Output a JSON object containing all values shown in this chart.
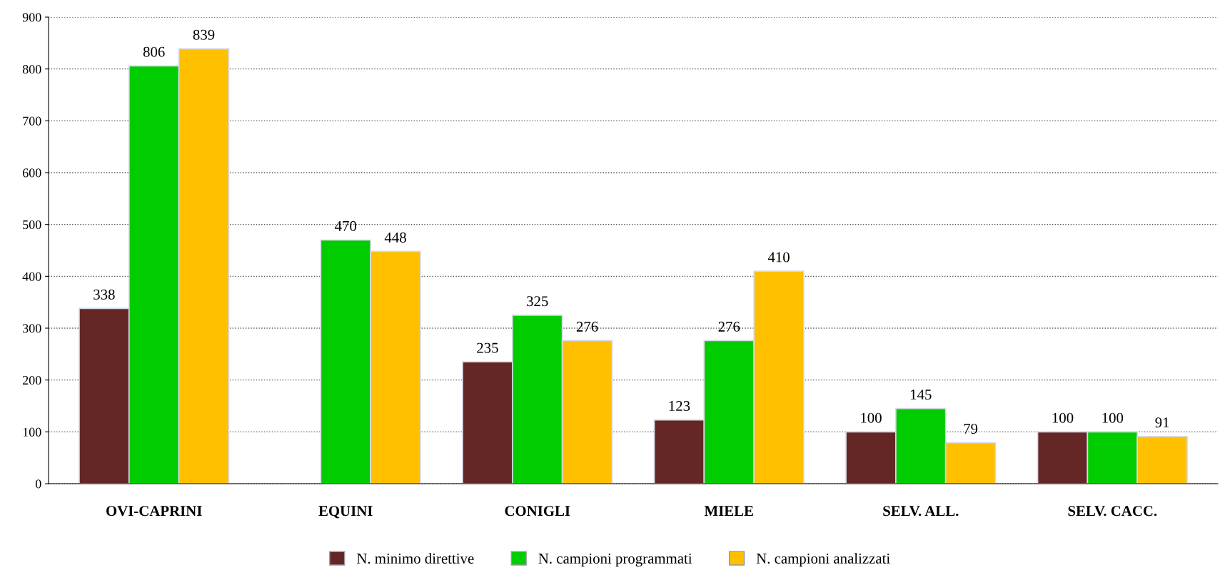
{
  "chart_data": {
    "type": "bar",
    "categories": [
      "OVI-CAPRINI",
      "EQUINI",
      "CONIGLI",
      "MIELE",
      "SELV. ALL.",
      "SELV. CACC."
    ],
    "series": [
      {
        "name": "N. minimo direttive",
        "color": "#652626",
        "values": [
          338,
          null,
          235,
          123,
          100,
          100
        ]
      },
      {
        "name": "N. campioni programmati",
        "color": "#00cc00",
        "values": [
          806,
          470,
          325,
          276,
          145,
          100
        ]
      },
      {
        "name": "N. campioni analizzati",
        "color": "#ffc000",
        "values": [
          839,
          448,
          276,
          410,
          79,
          91
        ]
      }
    ],
    "ylim": [
      0,
      900
    ],
    "yticks": [
      0,
      100,
      200,
      300,
      400,
      500,
      600,
      700,
      800,
      900
    ],
    "grid": "y",
    "legend": "bottom",
    "data_labels": true
  }
}
